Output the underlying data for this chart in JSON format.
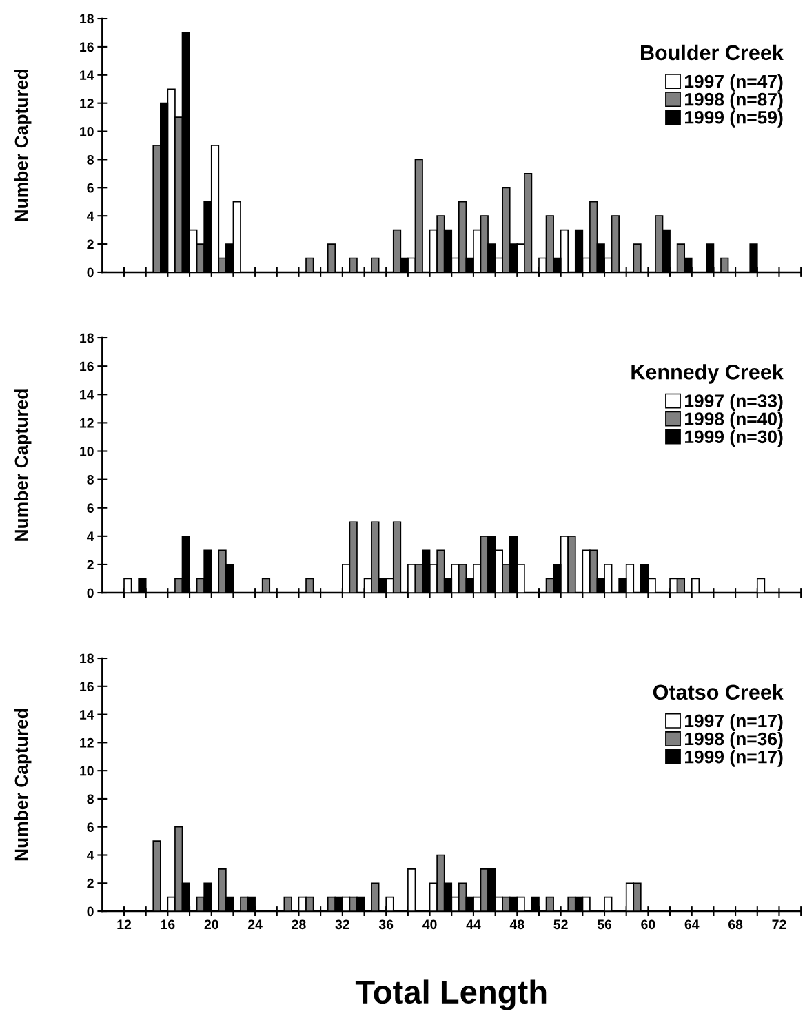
{
  "chart_data": [
    {
      "type": "bar",
      "title": "Boulder Creek",
      "ylabel": "Number Captured",
      "legend": "top right",
      "tick_labels": "y",
      "x": [
        11,
        13,
        15,
        17,
        19,
        21,
        23,
        25,
        27,
        29,
        31,
        33,
        35,
        37,
        39,
        41,
        43,
        45,
        47,
        49,
        51,
        53,
        55,
        57,
        59,
        61,
        63,
        65,
        67,
        69,
        71,
        73
      ],
      "xlim": [
        10,
        74
      ],
      "xticks": [
        {
          "value": 12,
          "label": null
        },
        {
          "value": 14,
          "label": null
        },
        {
          "value": 16,
          "label": null
        },
        {
          "value": 18,
          "label": null
        },
        {
          "value": 20,
          "label": null
        },
        {
          "value": 22,
          "label": null
        },
        {
          "value": 24,
          "label": null
        },
        {
          "value": 26,
          "label": null
        },
        {
          "value": 28,
          "label": null
        },
        {
          "value": 30,
          "label": null
        },
        {
          "value": 32,
          "label": null
        },
        {
          "value": 34,
          "label": null
        },
        {
          "value": 36,
          "label": null
        },
        {
          "value": 38,
          "label": null
        },
        {
          "value": 40,
          "label": null
        },
        {
          "value": 42,
          "label": null
        },
        {
          "value": 44,
          "label": null
        },
        {
          "value": 46,
          "label": null
        },
        {
          "value": 48,
          "label": null
        },
        {
          "value": 50,
          "label": null
        },
        {
          "value": 52,
          "label": null
        },
        {
          "value": 54,
          "label": null
        },
        {
          "value": 56,
          "label": null
        },
        {
          "value": 58,
          "label": null
        },
        {
          "value": 60,
          "label": null
        },
        {
          "value": 62,
          "label": null
        },
        {
          "value": 64,
          "label": null
        },
        {
          "value": 66,
          "label": null
        },
        {
          "value": 68,
          "label": null
        },
        {
          "value": 70,
          "label": null
        },
        {
          "value": 72,
          "label": null
        },
        {
          "value": 74,
          "label": null
        }
      ],
      "ylim": [
        0,
        18
      ],
      "yticks": [
        0,
        2,
        4,
        6,
        8,
        10,
        12,
        14,
        16,
        18
      ],
      "series": [
        {
          "name": "1997 (n=47)",
          "color": "#ffffff",
          "values": [
            0,
            0,
            0,
            13,
            3,
            9,
            5,
            0,
            0,
            0,
            0,
            0,
            0,
            0,
            1,
            3,
            1,
            3,
            1,
            2,
            1,
            3,
            1,
            1,
            0,
            0,
            0,
            0,
            0,
            0,
            0,
            0
          ]
        },
        {
          "name": "1998 (n=87)",
          "color": "#808080",
          "values": [
            0,
            0,
            9,
            11,
            2,
            1,
            0,
            0,
            0,
            1,
            2,
            1,
            1,
            3,
            8,
            4,
            5,
            4,
            6,
            7,
            4,
            0,
            5,
            4,
            2,
            4,
            2,
            0,
            1,
            0,
            0,
            0
          ]
        },
        {
          "name": "1999 (n=59)",
          "color": "#000000",
          "values": [
            0,
            0,
            12,
            17,
            5,
            2,
            0,
            0,
            0,
            0,
            0,
            0,
            0,
            1,
            0,
            3,
            1,
            2,
            2,
            0,
            1,
            3,
            2,
            0,
            0,
            3,
            1,
            2,
            0,
            2,
            0,
            0
          ]
        }
      ]
    },
    {
      "type": "bar",
      "title": "Kennedy Creek",
      "ylabel": "Number Captured",
      "legend": "top right",
      "tick_labels": "y",
      "x": [
        11,
        13,
        15,
        17,
        19,
        21,
        23,
        25,
        27,
        29,
        31,
        33,
        35,
        37,
        39,
        41,
        43,
        45,
        47,
        49,
        51,
        53,
        55,
        57,
        59,
        61,
        63,
        65,
        67,
        69,
        71,
        73
      ],
      "xlim": [
        10,
        74
      ],
      "xticks": [
        {
          "value": 12,
          "label": null
        },
        {
          "value": 14,
          "label": null
        },
        {
          "value": 16,
          "label": null
        },
        {
          "value": 18,
          "label": null
        },
        {
          "value": 20,
          "label": null
        },
        {
          "value": 22,
          "label": null
        },
        {
          "value": 24,
          "label": null
        },
        {
          "value": 26,
          "label": null
        },
        {
          "value": 28,
          "label": null
        },
        {
          "value": 30,
          "label": null
        },
        {
          "value": 32,
          "label": null
        },
        {
          "value": 34,
          "label": null
        },
        {
          "value": 36,
          "label": null
        },
        {
          "value": 38,
          "label": null
        },
        {
          "value": 40,
          "label": null
        },
        {
          "value": 42,
          "label": null
        },
        {
          "value": 44,
          "label": null
        },
        {
          "value": 46,
          "label": null
        },
        {
          "value": 48,
          "label": null
        },
        {
          "value": 50,
          "label": null
        },
        {
          "value": 52,
          "label": null
        },
        {
          "value": 54,
          "label": null
        },
        {
          "value": 56,
          "label": null
        },
        {
          "value": 58,
          "label": null
        },
        {
          "value": 60,
          "label": null
        },
        {
          "value": 62,
          "label": null
        },
        {
          "value": 64,
          "label": null
        },
        {
          "value": 66,
          "label": null
        },
        {
          "value": 68,
          "label": null
        },
        {
          "value": 70,
          "label": null
        },
        {
          "value": 72,
          "label": null
        },
        {
          "value": 74,
          "label": null
        }
      ],
      "ylim": [
        0,
        18
      ],
      "yticks": [
        0,
        2,
        4,
        6,
        8,
        10,
        12,
        14,
        16,
        18
      ],
      "series": [
        {
          "name": "1997 (n=33)",
          "color": "#ffffff",
          "values": [
            0,
            1,
            0,
            0,
            0,
            0,
            0,
            0,
            0,
            0,
            0,
            2,
            1,
            1,
            2,
            2,
            2,
            2,
            3,
            2,
            0,
            4,
            3,
            2,
            2,
            1,
            1,
            1,
            0,
            0,
            1,
            0
          ]
        },
        {
          "name": "1998 (n=40)",
          "color": "#808080",
          "values": [
            0,
            0,
            0,
            1,
            1,
            3,
            0,
            1,
            0,
            1,
            0,
            5,
            5,
            5,
            2,
            3,
            2,
            4,
            2,
            0,
            1,
            4,
            3,
            0,
            0,
            0,
            1,
            0,
            0,
            0,
            0,
            0
          ]
        },
        {
          "name": "1999 (n=30)",
          "color": "#000000",
          "values": [
            0,
            1,
            0,
            4,
            3,
            2,
            0,
            0,
            0,
            0,
            0,
            0,
            1,
            0,
            3,
            1,
            1,
            4,
            4,
            0,
            2,
            0,
            1,
            1,
            2,
            0,
            0,
            0,
            0,
            0,
            0,
            0
          ]
        }
      ]
    },
    {
      "type": "bar",
      "title": "Otatso Creek",
      "ylabel": "Number Captured",
      "xlabel": "Total Length",
      "legend": "top right",
      "x": [
        11,
        13,
        15,
        17,
        19,
        21,
        23,
        25,
        27,
        29,
        31,
        33,
        35,
        37,
        39,
        41,
        43,
        45,
        47,
        49,
        51,
        53,
        55,
        57,
        59,
        61,
        63,
        65,
        67,
        69,
        71,
        73
      ],
      "xlim": [
        10,
        74
      ],
      "xticks": [
        12,
        {
          "value": 14,
          "label": null
        },
        16,
        {
          "value": 18,
          "label": null
        },
        20,
        {
          "value": 22,
          "label": null
        },
        24,
        {
          "value": 26,
          "label": null
        },
        28,
        {
          "value": 30,
          "label": null
        },
        32,
        {
          "value": 34,
          "label": null
        },
        36,
        {
          "value": 38,
          "label": null
        },
        40,
        {
          "value": 42,
          "label": null
        },
        44,
        {
          "value": 46,
          "label": null
        },
        48,
        {
          "value": 50,
          "label": null
        },
        52,
        {
          "value": 54,
          "label": null
        },
        56,
        {
          "value": 58,
          "label": null
        },
        60,
        {
          "value": 62,
          "label": null
        },
        64,
        {
          "value": 66,
          "label": null
        },
        68,
        {
          "value": 70,
          "label": null
        },
        72,
        {
          "value": 74,
          "label": null
        }
      ],
      "ylim": [
        0,
        18
      ],
      "yticks": [
        0,
        2,
        4,
        6,
        8,
        10,
        12,
        14,
        16,
        18
      ],
      "series": [
        {
          "name": "1997 (n=17)",
          "color": "#ffffff",
          "values": [
            0,
            0,
            0,
            1,
            0,
            0,
            0,
            0,
            0,
            1,
            0,
            1,
            0,
            1,
            3,
            2,
            1,
            1,
            1,
            1,
            0,
            0,
            1,
            1,
            2,
            0,
            0,
            0,
            0,
            0,
            0,
            0
          ]
        },
        {
          "name": "1998 (n=36)",
          "color": "#808080",
          "values": [
            0,
            0,
            5,
            6,
            1,
            3,
            1,
            0,
            1,
            1,
            1,
            1,
            2,
            0,
            0,
            4,
            2,
            3,
            1,
            0,
            1,
            1,
            0,
            0,
            2,
            0,
            0,
            0,
            0,
            0,
            0,
            0
          ]
        },
        {
          "name": "1999 (n=17)",
          "color": "#000000",
          "values": [
            0,
            0,
            0,
            2,
            2,
            1,
            1,
            0,
            0,
            0,
            1,
            1,
            0,
            0,
            0,
            2,
            1,
            3,
            1,
            1,
            0,
            1,
            0,
            0,
            0,
            0,
            0,
            0,
            0,
            0,
            0,
            0
          ]
        }
      ]
    }
  ]
}
